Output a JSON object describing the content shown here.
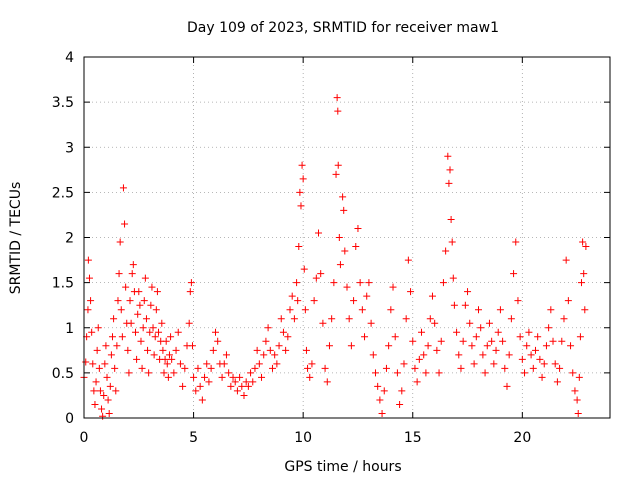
{
  "chart_data": {
    "type": "scatter",
    "title": "Day 109 of 2023, SRMTID for receiver maw1",
    "xlabel": "GPS time / hours",
    "ylabel": "SRMTID / TECUs",
    "xlim": [
      0,
      24
    ],
    "ylim": [
      0,
      4
    ],
    "x_ticks": [
      "0",
      "5",
      "10",
      "15",
      "20"
    ],
    "y_ticks": [
      "0",
      "0.5",
      "1",
      "1.5",
      "2",
      "2.5",
      "3",
      "3.5",
      "4"
    ],
    "grid": true,
    "marker": "+",
    "color": "#ff0000",
    "series": [
      {
        "name": "maw1",
        "points": [
          [
            0.0,
            0.45
          ],
          [
            0.08,
            0.62
          ],
          [
            0.12,
            0.9
          ],
          [
            0.18,
            1.2
          ],
          [
            0.2,
            1.75
          ],
          [
            0.25,
            1.55
          ],
          [
            0.3,
            1.3
          ],
          [
            0.35,
            0.95
          ],
          [
            0.4,
            0.6
          ],
          [
            0.45,
            0.3
          ],
          [
            0.5,
            0.15
          ],
          [
            0.55,
            0.4
          ],
          [
            0.6,
            0.75
          ],
          [
            0.65,
            1.0
          ],
          [
            0.7,
            0.55
          ],
          [
            0.75,
            0.3
          ],
          [
            0.8,
            0.1
          ],
          [
            0.85,
            0.02
          ],
          [
            0.9,
            0.25
          ],
          [
            0.95,
            0.6
          ],
          [
            1.0,
            0.8
          ],
          [
            1.05,
            0.45
          ],
          [
            1.1,
            0.2
          ],
          [
            1.15,
            0.05
          ],
          [
            1.2,
            0.35
          ],
          [
            1.25,
            0.7
          ],
          [
            1.3,
            0.9
          ],
          [
            1.35,
            1.1
          ],
          [
            1.4,
            0.55
          ],
          [
            1.45,
            0.3
          ],
          [
            1.5,
            0.8
          ],
          [
            1.55,
            1.3
          ],
          [
            1.6,
            1.6
          ],
          [
            1.65,
            1.95
          ],
          [
            1.7,
            1.2
          ],
          [
            1.75,
            0.9
          ],
          [
            1.8,
            2.55
          ],
          [
            1.85,
            2.15
          ],
          [
            1.9,
            1.45
          ],
          [
            1.95,
            1.05
          ],
          [
            2.0,
            0.75
          ],
          [
            2.05,
            0.5
          ],
          [
            2.1,
            1.3
          ],
          [
            2.15,
            1.05
          ],
          [
            2.2,
            1.6
          ],
          [
            2.25,
            1.7
          ],
          [
            2.3,
            1.4
          ],
          [
            2.35,
            0.95
          ],
          [
            2.4,
            0.65
          ],
          [
            2.45,
            1.15
          ],
          [
            2.5,
            1.4
          ],
          [
            2.55,
            1.25
          ],
          [
            2.6,
            0.85
          ],
          [
            2.65,
            0.55
          ],
          [
            2.7,
            1.0
          ],
          [
            2.75,
            1.3
          ],
          [
            2.8,
            1.55
          ],
          [
            2.85,
            1.1
          ],
          [
            2.9,
            0.75
          ],
          [
            2.95,
            0.5
          ],
          [
            3.0,
            0.95
          ],
          [
            3.05,
            1.25
          ],
          [
            3.1,
            1.45
          ],
          [
            3.15,
            1.0
          ],
          [
            3.2,
            0.7
          ],
          [
            3.25,
            0.9
          ],
          [
            3.3,
            1.2
          ],
          [
            3.35,
            1.4
          ],
          [
            3.4,
            0.95
          ],
          [
            3.45,
            0.65
          ],
          [
            3.5,
            0.85
          ],
          [
            3.55,
            1.05
          ],
          [
            3.6,
            0.75
          ],
          [
            3.65,
            0.5
          ],
          [
            3.7,
            0.65
          ],
          [
            3.75,
            0.85
          ],
          [
            3.8,
            0.6
          ],
          [
            3.85,
            0.45
          ],
          [
            3.9,
            0.7
          ],
          [
            3.95,
            0.9
          ],
          [
            4.0,
            0.65
          ],
          [
            4.1,
            0.5
          ],
          [
            4.2,
            0.75
          ],
          [
            4.3,
            0.95
          ],
          [
            4.4,
            0.6
          ],
          [
            4.5,
            0.35
          ],
          [
            4.6,
            0.55
          ],
          [
            4.7,
            0.8
          ],
          [
            4.8,
            1.05
          ],
          [
            4.85,
            1.4
          ],
          [
            4.9,
            1.5
          ],
          [
            4.95,
            0.8
          ],
          [
            5.0,
            0.45
          ],
          [
            5.1,
            0.3
          ],
          [
            5.2,
            0.55
          ],
          [
            5.3,
            0.35
          ],
          [
            5.4,
            0.2
          ],
          [
            5.5,
            0.45
          ],
          [
            5.6,
            0.6
          ],
          [
            5.7,
            0.4
          ],
          [
            5.8,
            0.55
          ],
          [
            5.9,
            0.75
          ],
          [
            6.0,
            0.95
          ],
          [
            6.1,
            0.85
          ],
          [
            6.2,
            0.6
          ],
          [
            6.3,
            0.45
          ],
          [
            6.4,
            0.6
          ],
          [
            6.5,
            0.7
          ],
          [
            6.6,
            0.5
          ],
          [
            6.7,
            0.35
          ],
          [
            6.8,
            0.45
          ],
          [
            6.9,
            0.4
          ],
          [
            7.0,
            0.3
          ],
          [
            7.1,
            0.45
          ],
          [
            7.2,
            0.35
          ],
          [
            7.3,
            0.25
          ],
          [
            7.4,
            0.4
          ],
          [
            7.5,
            0.35
          ],
          [
            7.6,
            0.5
          ],
          [
            7.7,
            0.4
          ],
          [
            7.8,
            0.55
          ],
          [
            7.9,
            0.75
          ],
          [
            8.0,
            0.6
          ],
          [
            8.1,
            0.45
          ],
          [
            8.2,
            0.7
          ],
          [
            8.3,
            0.85
          ],
          [
            8.4,
            1.0
          ],
          [
            8.5,
            0.75
          ],
          [
            8.6,
            0.55
          ],
          [
            8.7,
            0.7
          ],
          [
            8.8,
            0.6
          ],
          [
            8.9,
            0.8
          ],
          [
            9.0,
            1.1
          ],
          [
            9.1,
            0.95
          ],
          [
            9.2,
            0.75
          ],
          [
            9.3,
            0.9
          ],
          [
            9.4,
            1.2
          ],
          [
            9.5,
            1.35
          ],
          [
            9.6,
            1.1
          ],
          [
            9.7,
            1.5
          ],
          [
            9.75,
            1.3
          ],
          [
            9.8,
            1.9
          ],
          [
            9.85,
            2.5
          ],
          [
            9.9,
            2.35
          ],
          [
            9.95,
            2.8
          ],
          [
            10.0,
            2.65
          ],
          [
            10.05,
            1.65
          ],
          [
            10.1,
            1.2
          ],
          [
            10.15,
            0.75
          ],
          [
            10.2,
            0.55
          ],
          [
            10.3,
            0.45
          ],
          [
            10.4,
            0.6
          ],
          [
            10.5,
            1.3
          ],
          [
            10.6,
            1.55
          ],
          [
            10.7,
            2.05
          ],
          [
            10.8,
            1.6
          ],
          [
            10.9,
            1.05
          ],
          [
            11.0,
            0.55
          ],
          [
            11.1,
            0.4
          ],
          [
            11.2,
            0.8
          ],
          [
            11.3,
            1.1
          ],
          [
            11.4,
            1.5
          ],
          [
            11.5,
            2.7
          ],
          [
            11.55,
            3.55
          ],
          [
            11.58,
            3.4
          ],
          [
            11.6,
            2.8
          ],
          [
            11.65,
            2.0
          ],
          [
            11.7,
            1.7
          ],
          [
            11.8,
            2.45
          ],
          [
            11.85,
            2.3
          ],
          [
            11.9,
            1.85
          ],
          [
            12.0,
            1.45
          ],
          [
            12.1,
            1.1
          ],
          [
            12.2,
            0.8
          ],
          [
            12.3,
            1.3
          ],
          [
            12.4,
            1.9
          ],
          [
            12.5,
            2.1
          ],
          [
            12.6,
            1.5
          ],
          [
            12.7,
            1.2
          ],
          [
            12.8,
            0.9
          ],
          [
            12.9,
            1.35
          ],
          [
            13.0,
            1.5
          ],
          [
            13.1,
            1.05
          ],
          [
            13.2,
            0.7
          ],
          [
            13.3,
            0.5
          ],
          [
            13.4,
            0.35
          ],
          [
            13.5,
            0.2
          ],
          [
            13.6,
            0.05
          ],
          [
            13.7,
            0.3
          ],
          [
            13.8,
            0.55
          ],
          [
            13.9,
            0.8
          ],
          [
            14.0,
            1.2
          ],
          [
            14.1,
            1.45
          ],
          [
            14.2,
            0.9
          ],
          [
            14.3,
            0.5
          ],
          [
            14.4,
            0.15
          ],
          [
            14.5,
            0.3
          ],
          [
            14.6,
            0.6
          ],
          [
            14.7,
            1.1
          ],
          [
            14.8,
            1.75
          ],
          [
            14.9,
            1.4
          ],
          [
            15.0,
            0.85
          ],
          [
            15.1,
            0.55
          ],
          [
            15.2,
            0.4
          ],
          [
            15.3,
            0.65
          ],
          [
            15.4,
            0.95
          ],
          [
            15.5,
            0.7
          ],
          [
            15.6,
            0.5
          ],
          [
            15.7,
            0.8
          ],
          [
            15.8,
            1.1
          ],
          [
            15.9,
            1.35
          ],
          [
            16.0,
            1.05
          ],
          [
            16.1,
            0.75
          ],
          [
            16.2,
            0.5
          ],
          [
            16.3,
            0.85
          ],
          [
            16.4,
            1.5
          ],
          [
            16.5,
            1.85
          ],
          [
            16.6,
            2.9
          ],
          [
            16.65,
            2.6
          ],
          [
            16.7,
            2.75
          ],
          [
            16.75,
            2.2
          ],
          [
            16.8,
            1.95
          ],
          [
            16.85,
            1.55
          ],
          [
            16.9,
            1.25
          ],
          [
            17.0,
            0.95
          ],
          [
            17.1,
            0.7
          ],
          [
            17.2,
            0.55
          ],
          [
            17.3,
            0.85
          ],
          [
            17.4,
            1.25
          ],
          [
            17.5,
            1.4
          ],
          [
            17.6,
            1.05
          ],
          [
            17.7,
            0.8
          ],
          [
            17.8,
            0.6
          ],
          [
            17.9,
            0.9
          ],
          [
            18.0,
            1.2
          ],
          [
            18.1,
            1.0
          ],
          [
            18.2,
            0.7
          ],
          [
            18.3,
            0.5
          ],
          [
            18.4,
            0.8
          ],
          [
            18.5,
            1.05
          ],
          [
            18.6,
            0.85
          ],
          [
            18.7,
            0.6
          ],
          [
            18.8,
            0.75
          ],
          [
            18.9,
            0.95
          ],
          [
            19.0,
            1.2
          ],
          [
            19.1,
            0.85
          ],
          [
            19.2,
            0.55
          ],
          [
            19.3,
            0.35
          ],
          [
            19.4,
            0.7
          ],
          [
            19.5,
            1.1
          ],
          [
            19.6,
            1.6
          ],
          [
            19.7,
            1.95
          ],
          [
            19.8,
            1.3
          ],
          [
            19.9,
            0.9
          ],
          [
            20.0,
            0.65
          ],
          [
            20.1,
            0.5
          ],
          [
            20.2,
            0.8
          ],
          [
            20.3,
            0.95
          ],
          [
            20.4,
            0.7
          ],
          [
            20.5,
            0.55
          ],
          [
            20.6,
            0.75
          ],
          [
            20.7,
            0.9
          ],
          [
            20.8,
            0.65
          ],
          [
            20.9,
            0.45
          ],
          [
            21.0,
            0.6
          ],
          [
            21.1,
            0.8
          ],
          [
            21.2,
            1.0
          ],
          [
            21.3,
            1.2
          ],
          [
            21.4,
            0.85
          ],
          [
            21.5,
            0.6
          ],
          [
            21.6,
            0.4
          ],
          [
            21.7,
            0.55
          ],
          [
            21.8,
            0.85
          ],
          [
            21.9,
            1.1
          ],
          [
            22.0,
            1.75
          ],
          [
            22.1,
            1.3
          ],
          [
            22.2,
            0.8
          ],
          [
            22.3,
            0.5
          ],
          [
            22.4,
            0.3
          ],
          [
            22.5,
            0.2
          ],
          [
            22.55,
            0.05
          ],
          [
            22.6,
            0.45
          ],
          [
            22.65,
            0.9
          ],
          [
            22.7,
            1.5
          ],
          [
            22.75,
            1.95
          ],
          [
            22.8,
            1.6
          ],
          [
            22.85,
            1.2
          ],
          [
            22.9,
            1.9
          ]
        ]
      }
    ]
  }
}
